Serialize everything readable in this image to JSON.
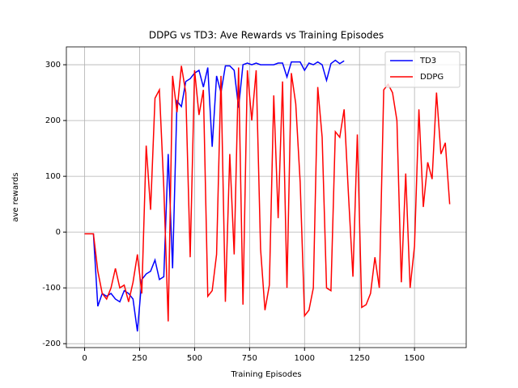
{
  "chart_data": {
    "type": "line",
    "title": "DDPG vs TD3: Ave Rewards vs Training Episodes",
    "xlabel": "Training Episodes",
    "ylabel": "ave rewards",
    "x": [
      0,
      20,
      40,
      60,
      80,
      100,
      120,
      140,
      160,
      180,
      200,
      220,
      240,
      260,
      280,
      300,
      320,
      340,
      360,
      380,
      400,
      420,
      440,
      460,
      480,
      500,
      520,
      540,
      560,
      580,
      600,
      620,
      640,
      660,
      680,
      700,
      720,
      740,
      760,
      780,
      800,
      820,
      840,
      860,
      880,
      900,
      920,
      940,
      960,
      980,
      1000,
      1020,
      1040,
      1060,
      1080,
      1100,
      1120,
      1140,
      1160,
      1180,
      1200,
      1220,
      1240,
      1260,
      1280,
      1300,
      1320,
      1340,
      1360,
      1380,
      1400,
      1420,
      1440,
      1460,
      1480,
      1500,
      1520,
      1540,
      1560,
      1580,
      1600,
      1620,
      1640,
      1660
    ],
    "series": [
      {
        "name": "TD3",
        "color": "#0000ff",
        "values": [
          -3,
          -3,
          -3,
          -133,
          -110,
          -115,
          -110,
          -120,
          -125,
          -105,
          -110,
          -120,
          -178,
          -85,
          -75,
          -70,
          -50,
          -85,
          -80,
          140,
          -65,
          235,
          225,
          270,
          275,
          285,
          290,
          260,
          295,
          153,
          280,
          250,
          298,
          298,
          290,
          223,
          300,
          303,
          300,
          303,
          300,
          300,
          300,
          300,
          303,
          303,
          278,
          305,
          305,
          305,
          290,
          303,
          300,
          305,
          300,
          272,
          302,
          308,
          302,
          307,
          null,
          null,
          null,
          null,
          null,
          null,
          null,
          null,
          null,
          null,
          null,
          null,
          null,
          null,
          null,
          null,
          null,
          null,
          null,
          null,
          null,
          null,
          null,
          null
        ]
      },
      {
        "name": "DDPG",
        "color": "#ff0000",
        "values": [
          -3,
          -3,
          -3,
          -70,
          -110,
          -120,
          -100,
          -65,
          -100,
          -95,
          -125,
          -90,
          -40,
          -110,
          155,
          40,
          240,
          255,
          80,
          -160,
          280,
          215,
          298,
          250,
          -45,
          290,
          210,
          255,
          -115,
          -105,
          -40,
          280,
          -125,
          140,
          -40,
          295,
          -130,
          290,
          200,
          290,
          -30,
          -140,
          -95,
          245,
          25,
          270,
          -100,
          285,
          230,
          90,
          -150,
          -140,
          -100,
          260,
          170,
          -100,
          -105,
          180,
          170,
          220,
          65,
          -80,
          175,
          -135,
          -130,
          -110,
          -45,
          -100,
          255,
          265,
          250,
          200,
          -90,
          105,
          -100,
          -25,
          220,
          45,
          125,
          95,
          250,
          140,
          160,
          50
        ]
      }
    ],
    "xlim": [
      -83,
      1735
    ],
    "ylim": [
      -207,
      332
    ],
    "xticks": [
      0,
      250,
      500,
      750,
      1000,
      1250,
      1500
    ],
    "yticks": [
      -200,
      -100,
      0,
      100,
      200,
      300
    ],
    "grid": true,
    "legend": "upper-right"
  }
}
